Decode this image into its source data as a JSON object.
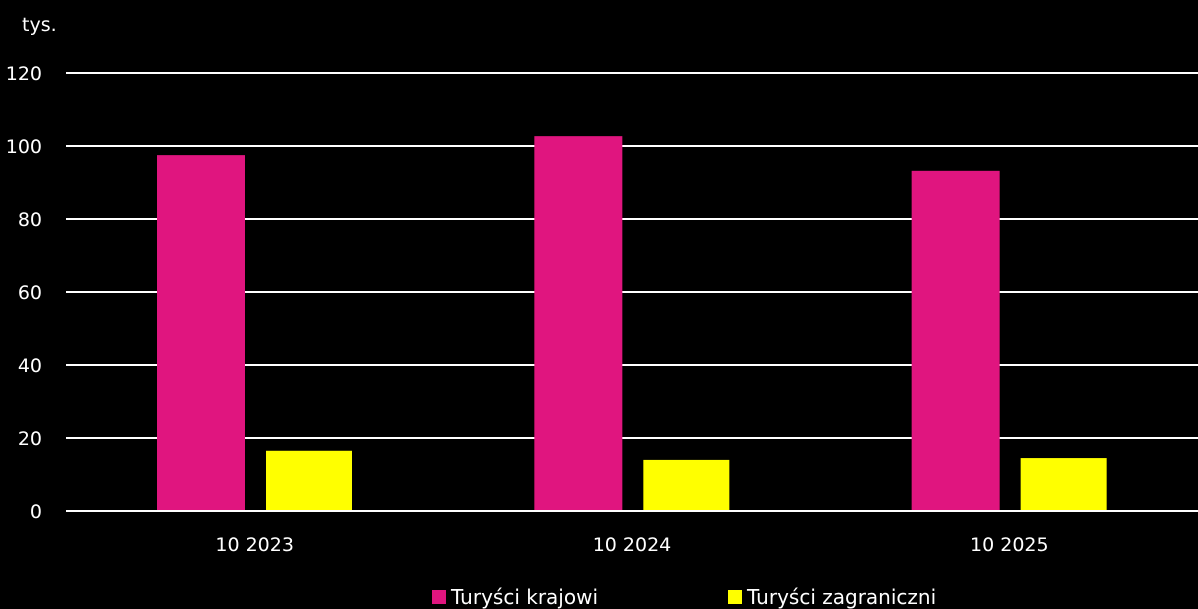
{
  "chart_data": {
    "type": "bar",
    "unit_label": "tys.",
    "categories": [
      "10 2023",
      "10 2024",
      "10 2025"
    ],
    "series": [
      {
        "name": "Turyści krajowi",
        "values": [
          97.5,
          102.7,
          93.2
        ],
        "color": "#E0157F"
      },
      {
        "name": "Turyści zagraniczni",
        "values": [
          16.5,
          14.0,
          14.5
        ],
        "color": "#FFFF00"
      }
    ],
    "ylim": [
      0,
      120
    ],
    "yticks": [
      0,
      20,
      40,
      60,
      80,
      100,
      120
    ],
    "grid": true,
    "legend_position": "bottom",
    "background": "#000000",
    "grid_color": "#FFFFFF"
  }
}
